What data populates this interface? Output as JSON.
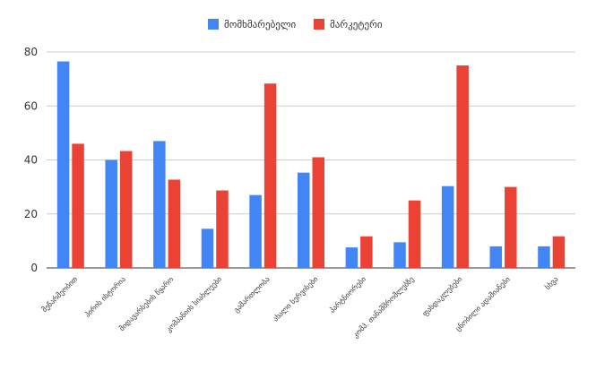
{
  "chart_data": {
    "type": "bar",
    "categories": [
      "მეწარმეობით",
      "პირის ისტორია",
      "შიდავარსების წყარო",
      "კომპანიის სიახლეები",
      "გამართლობა",
      "ახალი სერვისები",
      "პარტნიორები",
      "კომპ. თანამშრომლებზე",
      "ფასდაკლებები",
      "ცნობილი ადამიანები",
      "სხვა"
    ],
    "series": [
      {
        "name": "მომხმარებელი",
        "color": "#4285f4",
        "values": [
          76.5,
          40,
          47,
          14.5,
          27,
          35.3,
          7.6,
          9.5,
          30.3,
          8,
          8
        ]
      },
      {
        "name": "მარკეტერი",
        "color": "#ea4335",
        "values": [
          46,
          43.3,
          32.7,
          28.7,
          68.3,
          41,
          11.7,
          25,
          75,
          30,
          11.7
        ]
      }
    ],
    "ylim": [
      0,
      80
    ],
    "yticks": [
      0,
      20,
      40,
      60,
      80
    ],
    "grid": true,
    "legend": "top"
  }
}
